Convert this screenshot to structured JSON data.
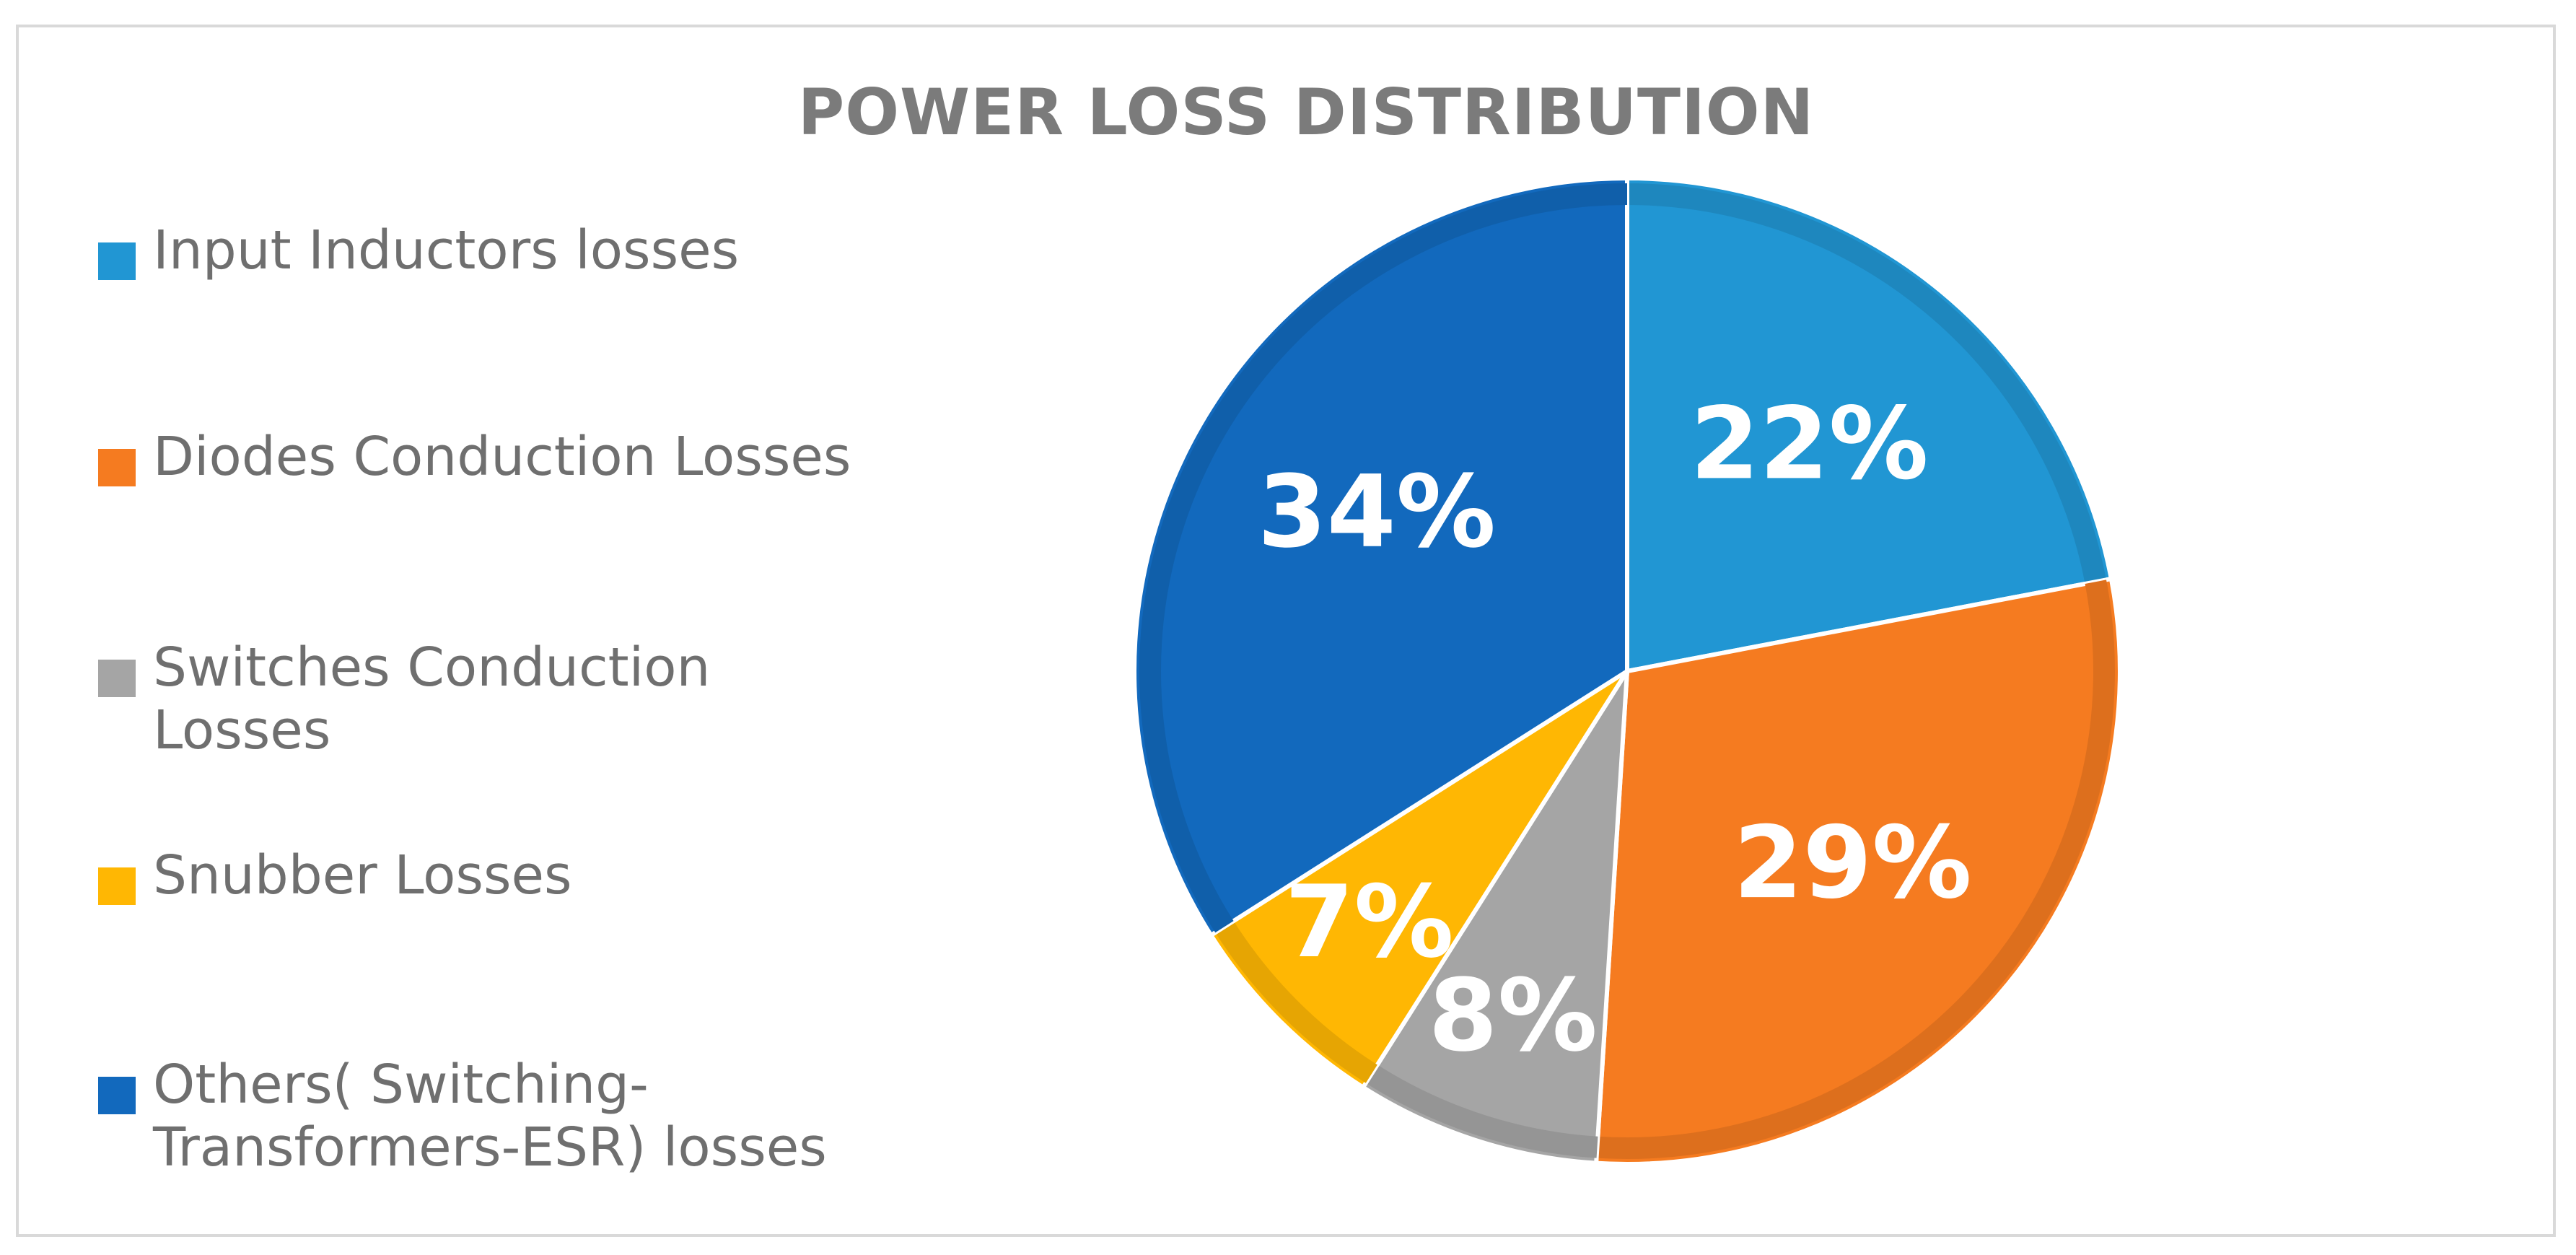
{
  "chart_data": {
    "type": "pie",
    "title": "POWER LOSS DISTRIBUTION",
    "legend_position": "left",
    "start_angle_deg": 0,
    "direction": "clockwise",
    "slices": [
      {
        "label": "Input Inductors losses",
        "value": 22,
        "display": "22%",
        "color": "#2196d3"
      },
      {
        "label": "Diodes Conduction Losses",
        "value": 29,
        "display": "29%",
        "color": "#f57b20"
      },
      {
        "label": "Switches Conduction Losses",
        "value": 8,
        "display": "8%",
        "color": "#a5a5a5"
      },
      {
        "label": "Snubber Losses",
        "value": 7,
        "display": "7%",
        "color": "#ffb703"
      },
      {
        "label": "Others( Switching-Transformers-ESR) losses",
        "value": 34,
        "display": "34%",
        "color": "#1269bd"
      }
    ]
  },
  "legend": {
    "items": [
      {
        "label": "Input Inductors losses"
      },
      {
        "label": "Diodes Conduction Losses"
      },
      {
        "label": "Switches Conduction\nLosses"
      },
      {
        "label": "Snubber Losses"
      },
      {
        "label": "Others( Switching-\nTransformers-ESR) losses"
      }
    ]
  }
}
